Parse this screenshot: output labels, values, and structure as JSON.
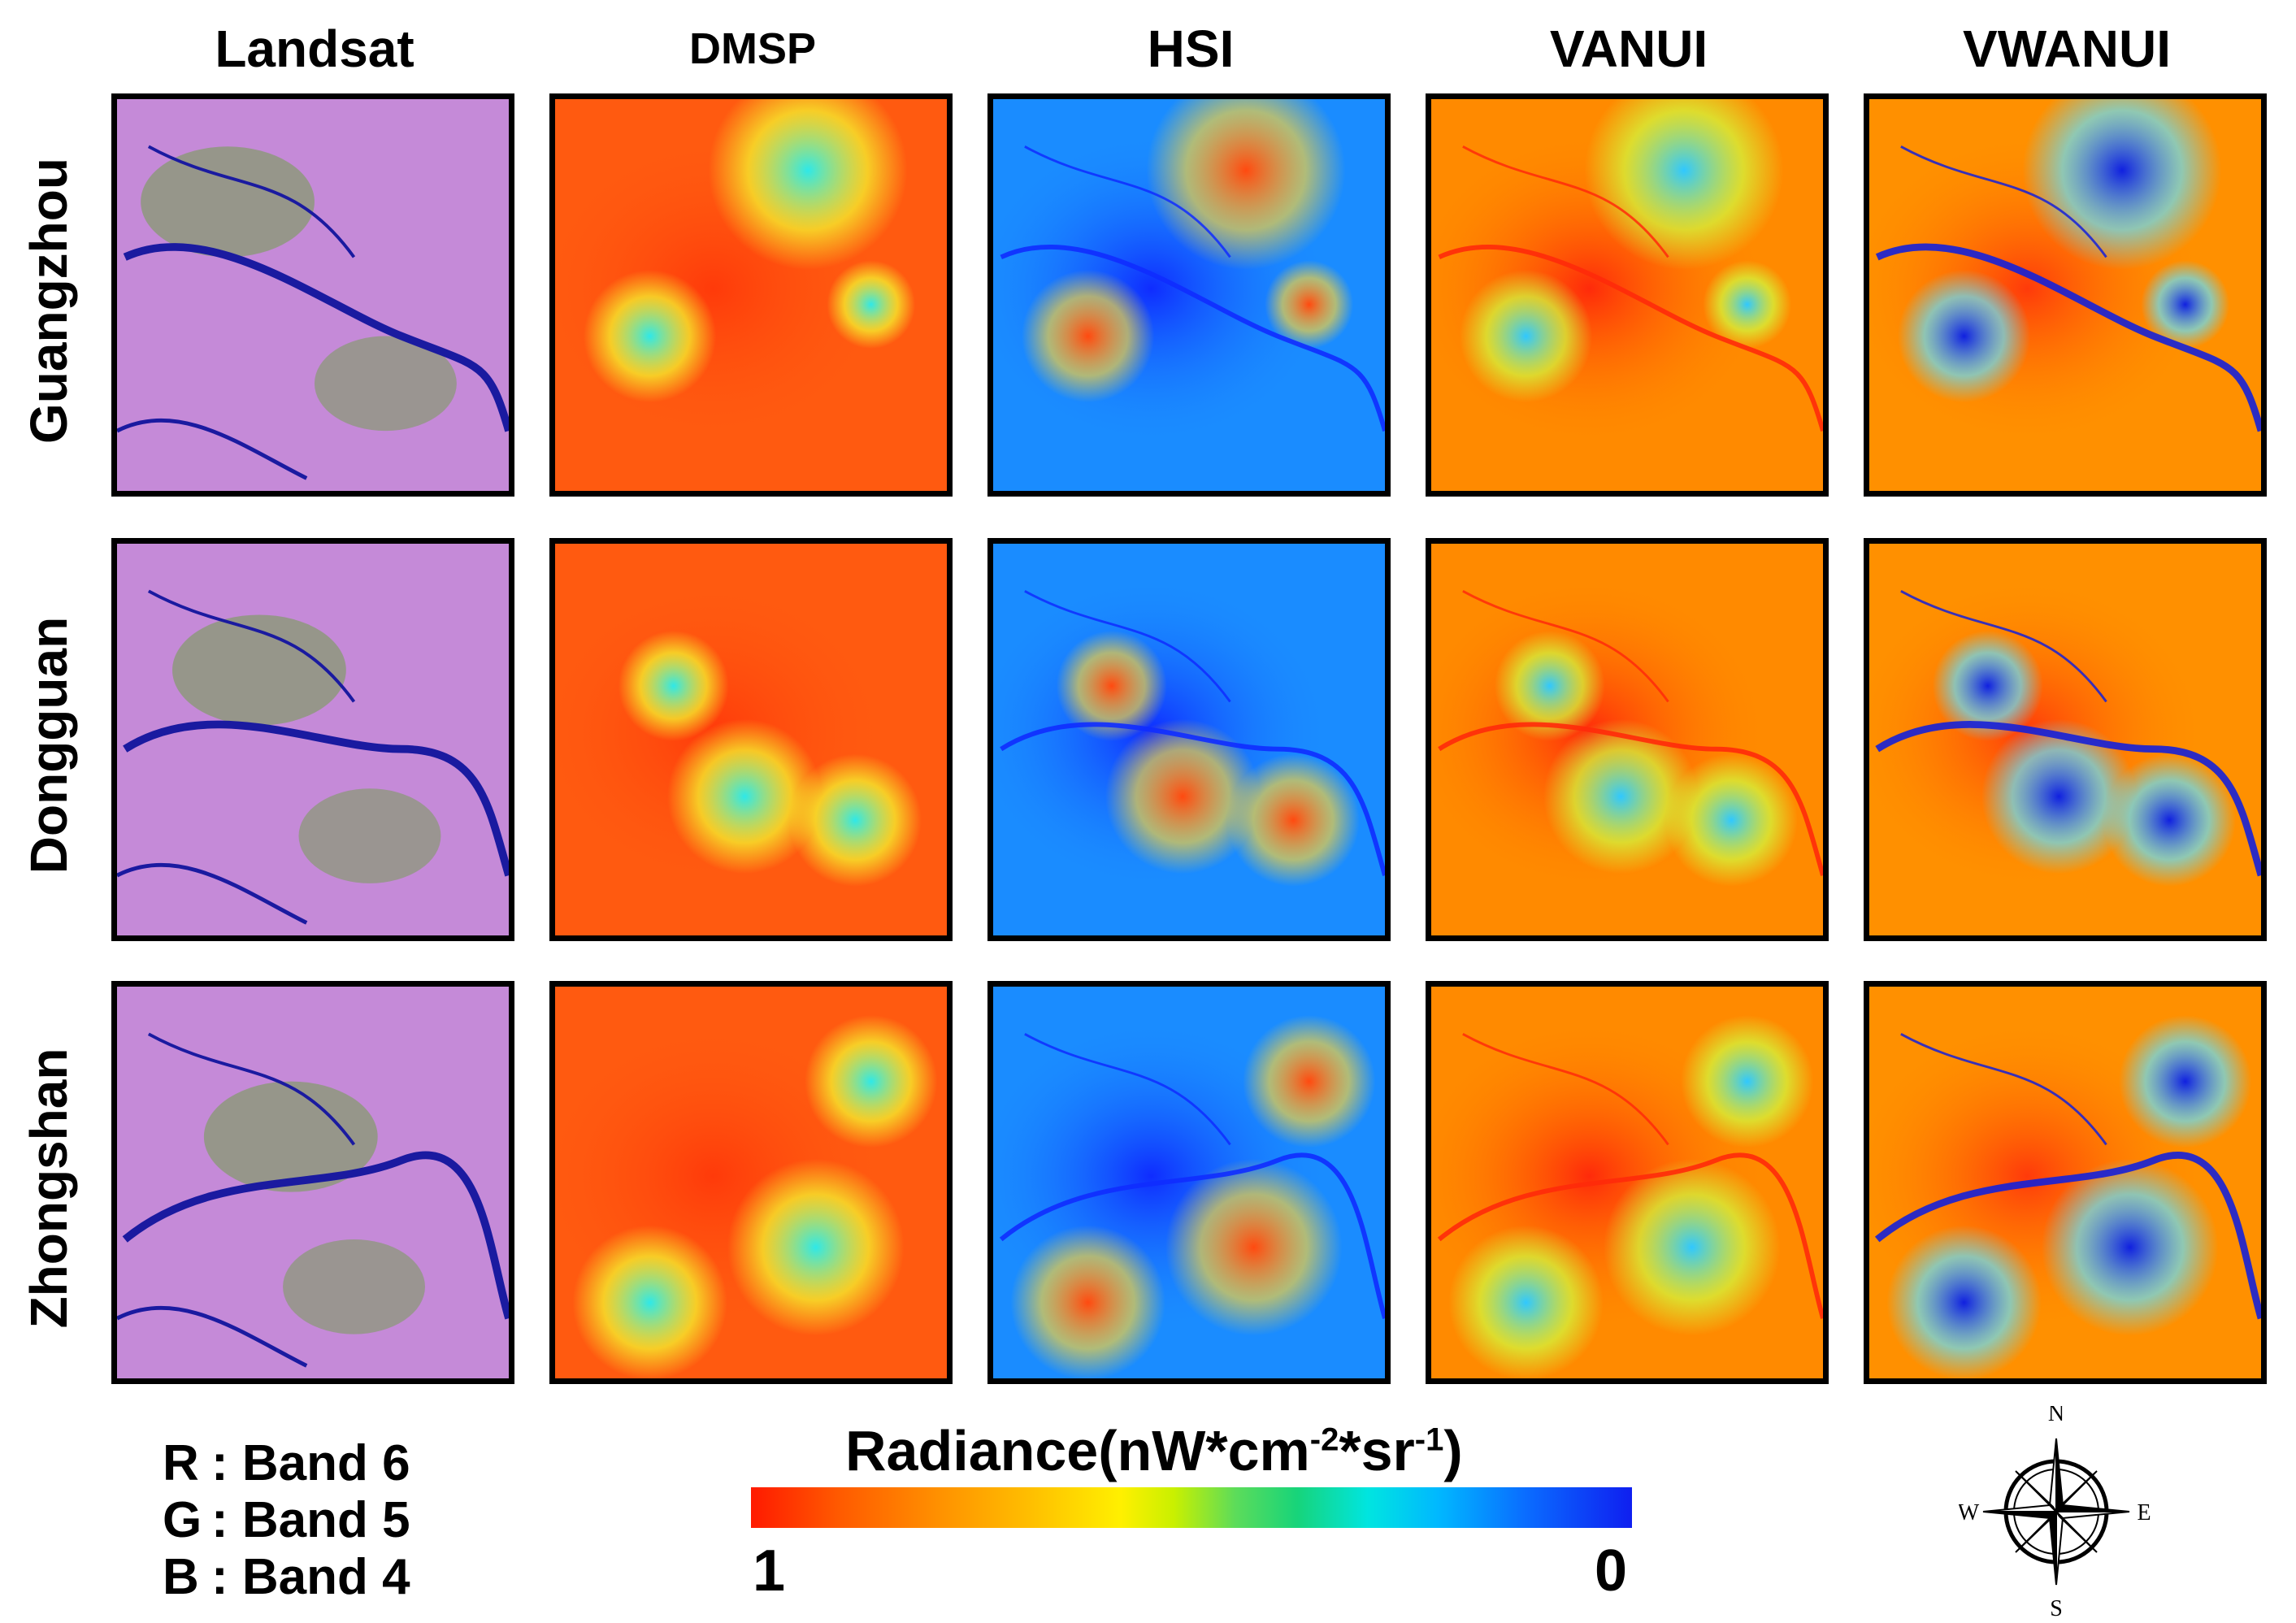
{
  "columns": [
    "Landsat",
    "DMSP",
    "HSI",
    "VANUI",
    "VWANUI"
  ],
  "rows": [
    "Guangzhou",
    "Dongguan",
    "Zhongshan"
  ],
  "band_legend": [
    {
      "channel": "R",
      "band": "Band 6"
    },
    {
      "channel": "G",
      "band": "Band 5"
    },
    {
      "channel": "B",
      "band": "Band 4"
    }
  ],
  "colorbar": {
    "title_main": "Radiance(nW*cm",
    "exp1": "-2",
    "title_mid": "*sr",
    "exp2": "-1",
    "title_end": ")",
    "min_label": "1",
    "max_label": "0",
    "high_color": "#ff1a00",
    "low_color": "#0f1ff0"
  },
  "compass": {
    "north": "N",
    "south": "S",
    "east": "E",
    "west": "W"
  },
  "colors": {
    "landsat_base": "#c58ad8",
    "landsat_vegetation": "#6fa04a",
    "water": "#1a1aa0"
  }
}
